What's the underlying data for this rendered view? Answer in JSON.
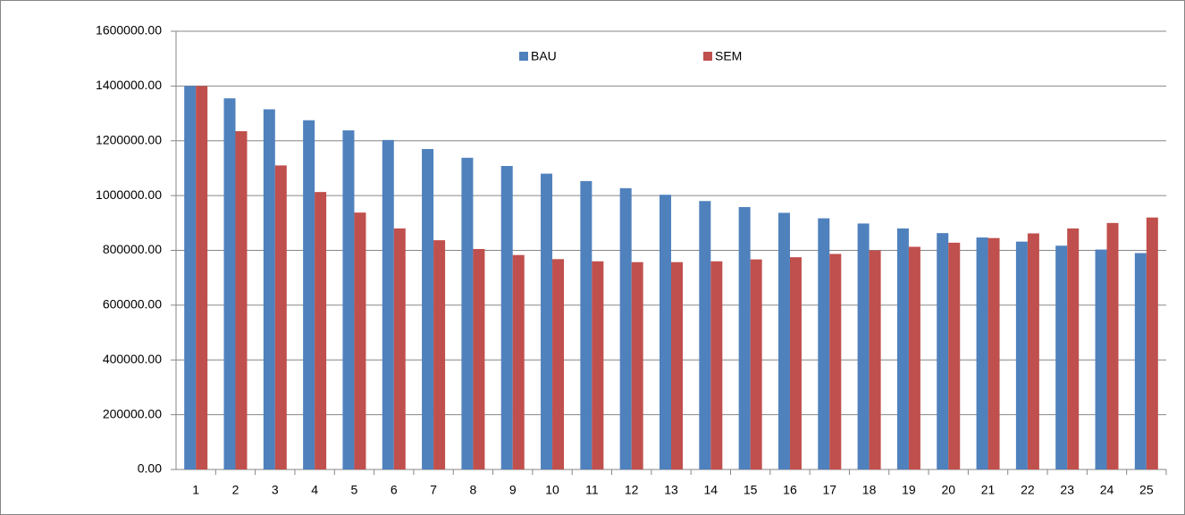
{
  "chart_data": {
    "type": "bar",
    "categories": [
      "1",
      "2",
      "3",
      "4",
      "5",
      "6",
      "7",
      "8",
      "9",
      "10",
      "11",
      "12",
      "13",
      "14",
      "15",
      "16",
      "17",
      "18",
      "19",
      "20",
      "21",
      "22",
      "23",
      "24",
      "25"
    ],
    "series": [
      {
        "name": "BAU",
        "color": "#4f81bd",
        "values": [
          1400000,
          1355000,
          1315000,
          1275000,
          1238000,
          1203000,
          1170000,
          1138000,
          1108000,
          1080000,
          1053000,
          1027000,
          1003000,
          980000,
          958000,
          937000,
          917000,
          898000,
          880000,
          863000,
          847000,
          832000,
          817000,
          803000,
          790000
        ]
      },
      {
        "name": "SEM",
        "color": "#c0504d",
        "values": [
          1400000,
          1235000,
          1110000,
          1013000,
          938000,
          880000,
          837000,
          805000,
          783000,
          768000,
          760000,
          757000,
          757000,
          760000,
          767000,
          775000,
          787000,
          800000,
          813000,
          828000,
          845000,
          862000,
          880000,
          900000,
          920000
        ]
      }
    ],
    "ylim": [
      0,
      1600000
    ],
    "yticks": [
      {
        "value": 0,
        "label": "0.00"
      },
      {
        "value": 200000,
        "label": "200000.00"
      },
      {
        "value": 400000,
        "label": "400000.00"
      },
      {
        "value": 600000,
        "label": "600000.00"
      },
      {
        "value": 800000,
        "label": "800000.00"
      },
      {
        "value": 1000000,
        "label": "1000000.00"
      },
      {
        "value": 1200000,
        "label": "1200000.00"
      },
      {
        "value": 1400000,
        "label": "1400000.00"
      },
      {
        "value": 1600000,
        "label": "1600000.00"
      }
    ],
    "grid": true,
    "legend": "top"
  }
}
